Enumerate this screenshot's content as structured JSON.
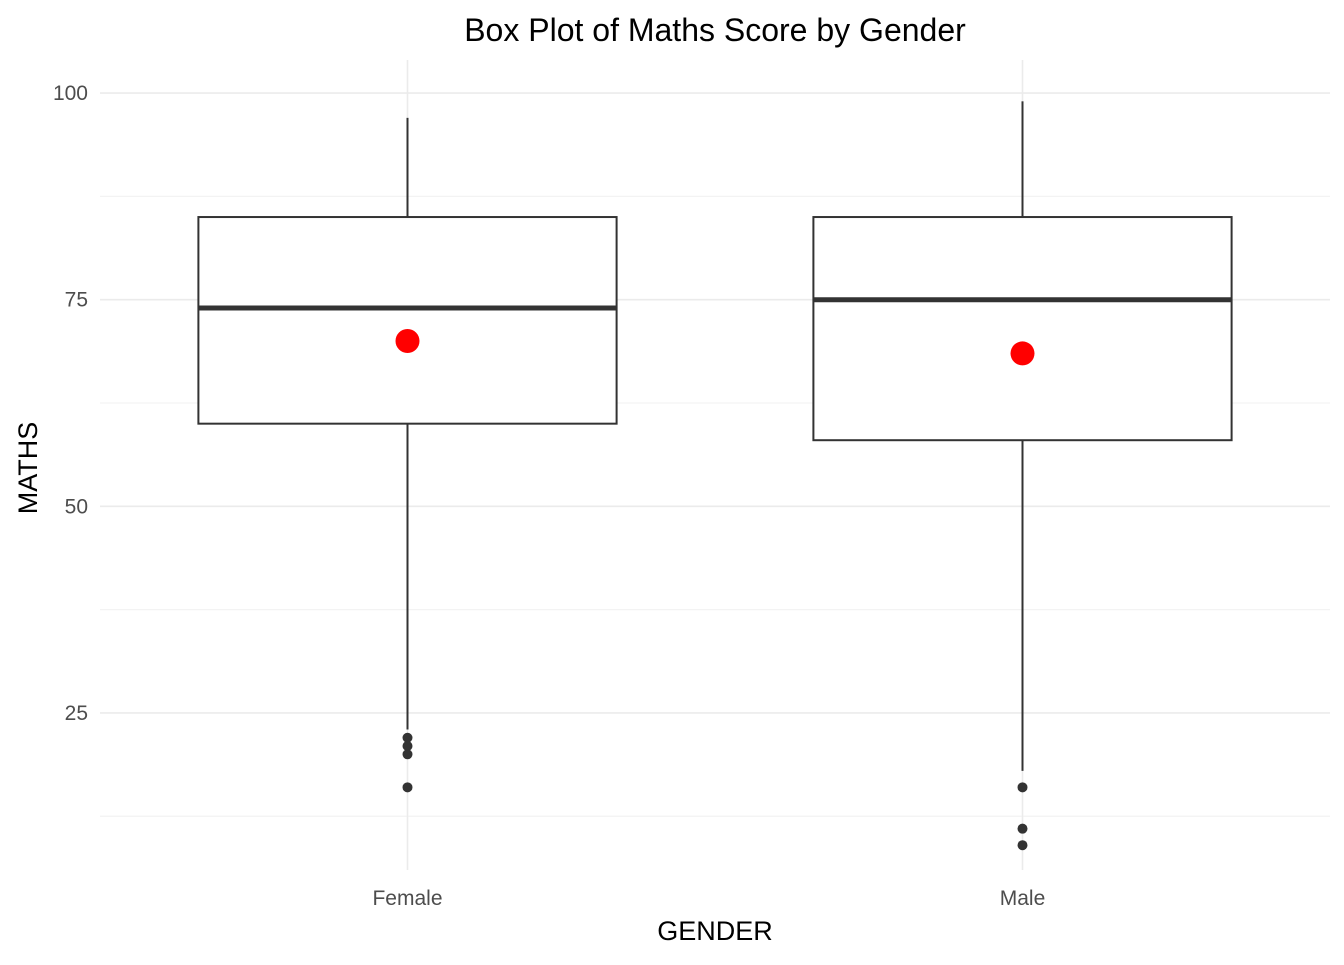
{
  "chart_data": {
    "type": "box",
    "title": "Box Plot of Maths Score by Gender",
    "xlabel": "GENDER",
    "ylabel": "MATHS",
    "ylim": [
      6,
      104
    ],
    "yticks": [
      25,
      50,
      75,
      100
    ],
    "grid": true,
    "categories": [
      "Female",
      "Male"
    ],
    "boxes": [
      {
        "category": "Female",
        "whisker_low": 23,
        "q1": 60,
        "median": 74,
        "q3": 85,
        "whisker_high": 97,
        "mean": 70,
        "outliers": [
          22,
          21,
          20,
          16
        ]
      },
      {
        "category": "Male",
        "whisker_low": 18,
        "q1": 58,
        "median": 75,
        "q3": 85,
        "whisker_high": 99,
        "mean": 68.5,
        "outliers": [
          16,
          11,
          9
        ]
      }
    ],
    "colors": {
      "mean_marker": "#ff0000",
      "box_stroke": "#333333",
      "grid": "#ebebeb"
    }
  }
}
